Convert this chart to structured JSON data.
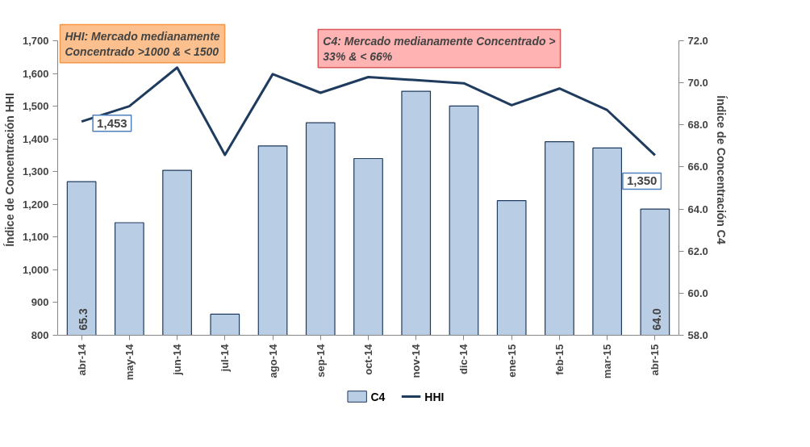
{
  "chart_data": {
    "type": "bar",
    "ylabel": "Índice de Concentración HHI",
    "y2label": "Índice de Concentración C4",
    "annotations": [
      "HHI: Mercado medianamente\nConcentrado >1000 & < 1500",
      "C4: Mercado medianamente Concentrado >\n33% & < 66%"
    ],
    "categories": [
      "abr-14",
      "may-14",
      "jun-14",
      "jul-14",
      "ago-14",
      "sep-14",
      "oct-14",
      "nov-14",
      "dic-14",
      "ene-15",
      "feb-15",
      "mar-15",
      "abr-15"
    ],
    "series": [
      {
        "name": "C4",
        "axis": "y2",
        "color": "#b9cde5",
        "values": [
          65.3,
          63.35,
          65.84,
          59.0,
          67.0,
          68.1,
          66.4,
          69.6,
          68.9,
          64.4,
          67.2,
          66.9,
          64.0
        ],
        "value_labels": [
          "65.3",
          null,
          null,
          null,
          null,
          null,
          null,
          null,
          null,
          null,
          null,
          null,
          "64.0"
        ]
      },
      {
        "name": "HHI",
        "type": "line",
        "color": "#1f3b5e",
        "values": [
          1453,
          1500,
          1618,
          1351,
          1598,
          1541,
          1589,
          null,
          1570,
          1503,
          1554,
          1488,
          1350
        ],
        "value_labels": [
          "1,453",
          null,
          null,
          null,
          null,
          null,
          null,
          null,
          null,
          null,
          null,
          null,
          "1,350"
        ]
      }
    ],
    "ylim": [
      800,
      1700
    ],
    "yticks": [
      {
        "value": 800,
        "label": "800"
      },
      {
        "value": 900,
        "label": "900"
      },
      {
        "value": 1000,
        "label": "1,000"
      },
      {
        "value": 1100,
        "label": "1,100"
      },
      {
        "value": 1200,
        "label": "1,200"
      },
      {
        "value": 1300,
        "label": "1,300"
      },
      {
        "value": 1400,
        "label": "1,400"
      },
      {
        "value": 1500,
        "label": "1,500"
      },
      {
        "value": 1600,
        "label": "1,600"
      },
      {
        "value": 1700,
        "label": "1,700"
      }
    ],
    "y2lim": [
      58,
      72
    ],
    "y2ticks": [
      {
        "value": 58,
        "label": "58.0"
      },
      {
        "value": 60,
        "label": "60.0"
      },
      {
        "value": 62,
        "label": "62.0"
      },
      {
        "value": 64,
        "label": "64.0"
      },
      {
        "value": 66,
        "label": "66.0"
      },
      {
        "value": 68,
        "label": "68.0"
      },
      {
        "value": 70,
        "label": "70.0"
      },
      {
        "value": 72,
        "label": "72.0"
      }
    ],
    "grid": false,
    "legend": "bottom",
    "marker": "none",
    "line_style": "solid"
  }
}
